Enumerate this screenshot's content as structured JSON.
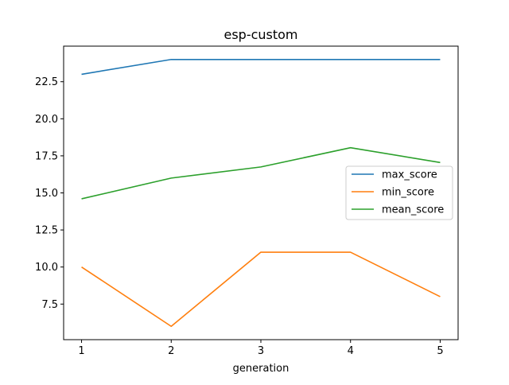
{
  "chart_data": {
    "type": "line",
    "title": "esp-custom",
    "xlabel": "generation",
    "ylabel": "",
    "x": [
      1,
      2,
      3,
      4,
      5
    ],
    "xlim": [
      0.8,
      5.2
    ],
    "ylim": [
      5.1,
      24.9
    ],
    "xticks": [
      1,
      2,
      3,
      4,
      5
    ],
    "yticks": [
      7.5,
      10.0,
      12.5,
      15.0,
      17.5,
      20.0,
      22.5
    ],
    "ytick_labels": [
      "7.5",
      "10.0",
      "12.5",
      "15.0",
      "17.5",
      "20.0",
      "22.5"
    ],
    "grid": false,
    "legend_position": "center-right",
    "series": [
      {
        "name": "max_score",
        "color": "#1f77b4",
        "values": [
          23,
          24,
          24,
          24,
          24
        ]
      },
      {
        "name": "min_score",
        "color": "#ff7f0e",
        "values": [
          10,
          6,
          11,
          11,
          8
        ]
      },
      {
        "name": "mean_score",
        "color": "#2ca02c",
        "values": [
          14.6,
          16.0,
          16.75,
          18.05,
          17.05
        ]
      }
    ]
  }
}
